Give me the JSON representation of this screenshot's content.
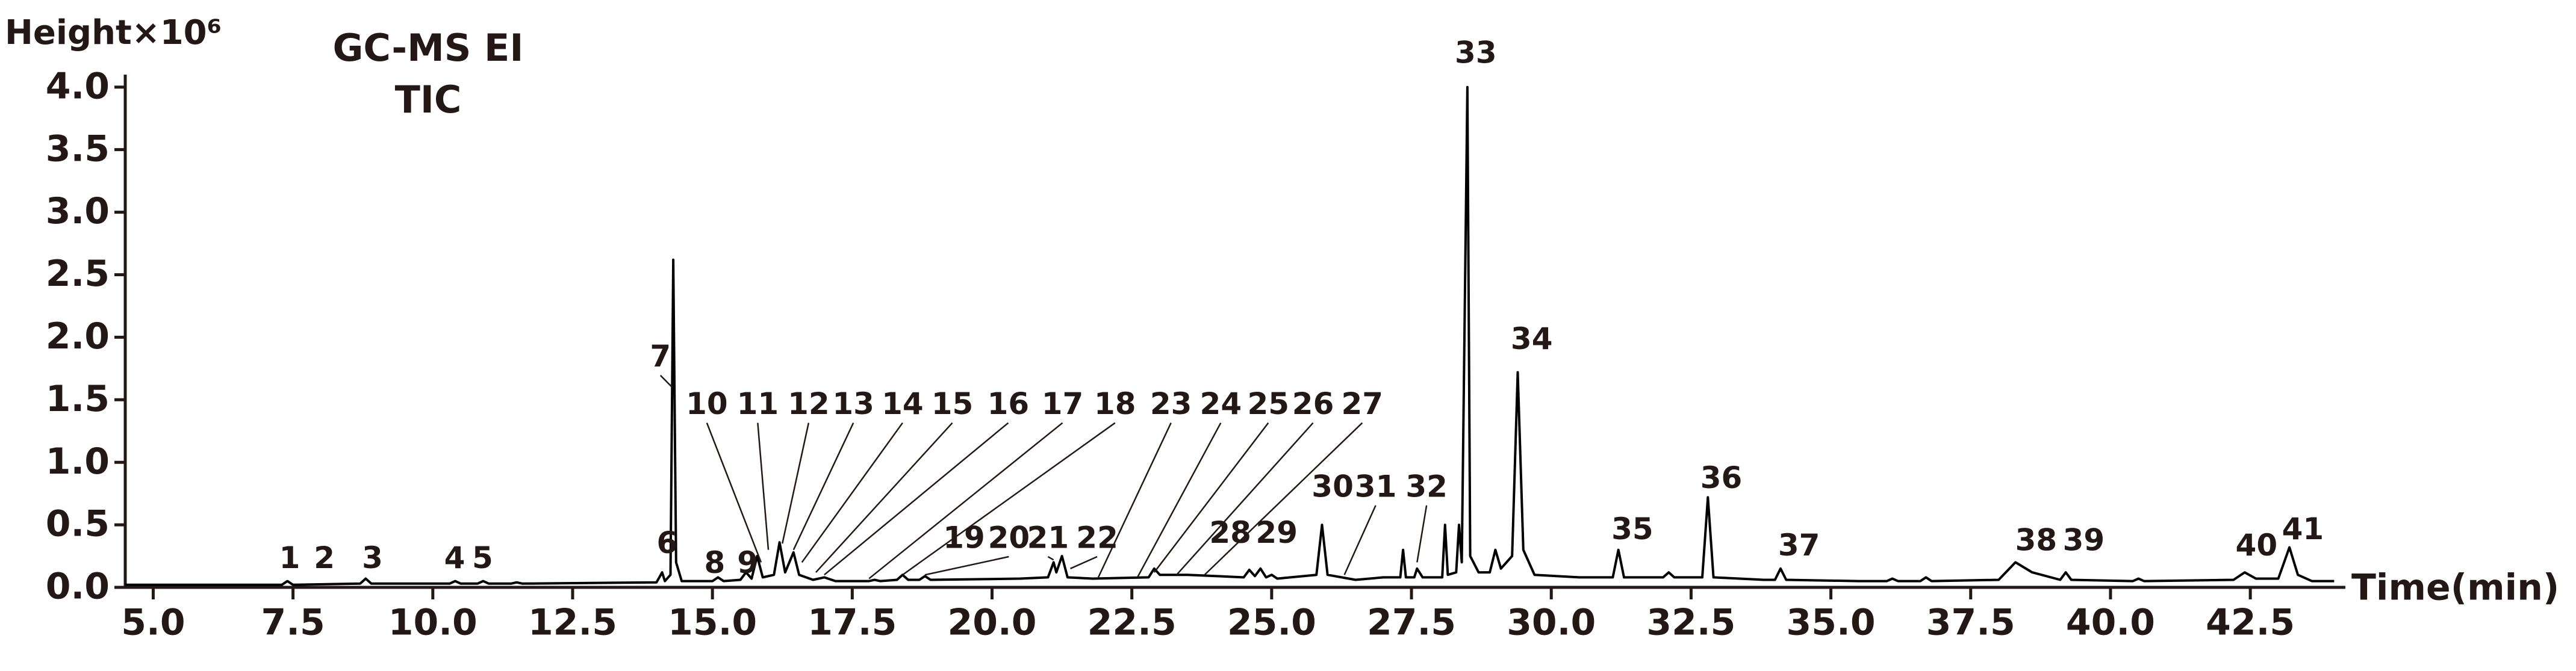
{
  "chart_data": {
    "type": "line",
    "title": "GC-MS EI",
    "subtitle": "TIC",
    "y_label": "Height×10⁶",
    "x_label": "Time(min)",
    "color": "#000000",
    "xlim": [
      4.5,
      44.2
    ],
    "ylim": [
      0,
      4.1
    ],
    "xticks": [
      {
        "value": 5,
        "label": "5.0"
      },
      7.5,
      {
        "value": 10,
        "label": "10.0"
      },
      12.5,
      {
        "value": 15,
        "label": "15.0"
      },
      17.5,
      {
        "value": 20,
        "label": "20.0"
      },
      22.5,
      {
        "value": 25,
        "label": "25.0"
      },
      27.5,
      {
        "value": 30,
        "label": "30.0"
      },
      32.5,
      {
        "value": 35,
        "label": "35.0"
      },
      37.5,
      {
        "value": 40,
        "label": "40.0"
      },
      42.5
    ],
    "yticks": [
      {
        "value": 0,
        "label": "0.0"
      },
      0.5,
      {
        "value": 1,
        "label": "1.0"
      },
      1.5,
      {
        "value": 2,
        "label": "2.0"
      },
      2.5,
      {
        "value": 3,
        "label": "3.0"
      },
      3.5,
      {
        "value": 4,
        "label": "4.0"
      }
    ],
    "x": [
      4.5,
      7.3,
      7.4,
      7.5,
      8.7,
      8.8,
      8.9,
      10.3,
      10.4,
      10.5,
      10.8,
      10.9,
      11.0,
      11.4,
      11.5,
      11.6,
      14.0,
      14.1,
      14.15,
      14.25,
      14.3,
      14.35,
      14.45,
      15.0,
      15.1,
      15.2,
      15.5,
      15.6,
      15.7,
      15.8,
      15.9,
      16.1,
      16.2,
      16.3,
      16.45,
      16.55,
      16.8,
      17.0,
      17.2,
      17.8,
      17.9,
      18.0,
      18.3,
      18.4,
      18.5,
      18.7,
      18.8,
      18.9,
      20.5,
      21.0,
      21.1,
      21.15,
      21.25,
      21.35,
      21.8,
      22.8,
      22.9,
      23.0,
      23.5,
      24.0,
      24.5,
      24.6,
      24.7,
      24.8,
      24.9,
      25.0,
      25.1,
      25.8,
      25.9,
      26.0,
      26.5,
      27.0,
      27.3,
      27.35,
      27.4,
      27.55,
      27.6,
      27.7,
      28.05,
      28.1,
      28.15,
      28.3,
      28.35,
      28.4,
      28.5,
      28.55,
      28.7,
      28.9,
      29.0,
      29.1,
      29.3,
      29.4,
      29.5,
      29.7,
      30.5,
      31.1,
      31.2,
      31.3,
      32.0,
      32.1,
      32.2,
      32.7,
      32.8,
      32.9,
      33.8,
      34.0,
      34.1,
      34.2,
      35.5,
      36.0,
      36.1,
      36.2,
      36.6,
      36.7,
      36.8,
      38.0,
      38.3,
      38.6,
      39.1,
      39.2,
      39.3,
      40.4,
      40.5,
      40.6,
      42.2,
      42.4,
      42.6,
      43.0,
      43.2,
      43.35,
      43.6,
      44.0
    ],
    "values": [
      0.02,
      0.02,
      0.05,
      0.02,
      0.03,
      0.07,
      0.03,
      0.03,
      0.05,
      0.03,
      0.03,
      0.05,
      0.03,
      0.03,
      0.04,
      0.03,
      0.04,
      0.12,
      0.05,
      0.1,
      2.62,
      0.2,
      0.05,
      0.05,
      0.08,
      0.05,
      0.06,
      0.12,
      0.07,
      0.25,
      0.08,
      0.1,
      0.36,
      0.12,
      0.28,
      0.1,
      0.06,
      0.08,
      0.05,
      0.05,
      0.06,
      0.05,
      0.06,
      0.1,
      0.06,
      0.06,
      0.09,
      0.06,
      0.07,
      0.08,
      0.2,
      0.12,
      0.25,
      0.08,
      0.07,
      0.08,
      0.15,
      0.1,
      0.1,
      0.09,
      0.08,
      0.14,
      0.09,
      0.15,
      0.08,
      0.1,
      0.07,
      0.1,
      0.5,
      0.1,
      0.06,
      0.08,
      0.08,
      0.3,
      0.08,
      0.08,
      0.15,
      0.08,
      0.08,
      0.5,
      0.1,
      0.12,
      0.5,
      0.2,
      4.0,
      0.25,
      0.12,
      0.12,
      0.3,
      0.15,
      0.25,
      1.72,
      0.3,
      0.1,
      0.08,
      0.08,
      0.3,
      0.08,
      0.08,
      0.12,
      0.08,
      0.08,
      0.72,
      0.08,
      0.06,
      0.06,
      0.15,
      0.06,
      0.05,
      0.05,
      0.07,
      0.05,
      0.05,
      0.08,
      0.05,
      0.06,
      0.2,
      0.12,
      0.06,
      0.12,
      0.06,
      0.05,
      0.07,
      0.05,
      0.06,
      0.12,
      0.07,
      0.07,
      0.32,
      0.1,
      0.05,
      0.05
    ],
    "annotations": [
      {
        "text": "1",
        "x": 7.44,
        "y": 0.22
      },
      {
        "text": "2",
        "x": 8.06,
        "y": 0.22
      },
      {
        "text": "3",
        "x": 8.92,
        "y": 0.22
      },
      {
        "text": "4",
        "x": 10.39,
        "y": 0.22
      },
      {
        "text": "5",
        "x": 10.89,
        "y": 0.22
      },
      {
        "text": "6",
        "x": 14.19,
        "y": 0.34
      },
      {
        "text": "7",
        "x": 14.07,
        "y": 1.83,
        "target": [
          14.28,
          1.6
        ]
      },
      {
        "text": "8",
        "x": 15.04,
        "y": 0.18
      },
      {
        "text": "9",
        "x": 15.63,
        "y": 0.18
      },
      {
        "text": "10",
        "x": 14.9,
        "y": 1.45,
        "target": [
          15.87,
          0.2
        ]
      },
      {
        "text": "11",
        "x": 15.81,
        "y": 1.45,
        "target": [
          16.0,
          0.3
        ]
      },
      {
        "text": "12",
        "x": 16.72,
        "y": 1.45,
        "target": [
          16.25,
          0.35
        ]
      },
      {
        "text": "13",
        "x": 17.52,
        "y": 1.45,
        "target": [
          16.45,
          0.3
        ]
      },
      {
        "text": "14",
        "x": 18.4,
        "y": 1.45,
        "target": [
          16.6,
          0.2
        ]
      },
      {
        "text": "15",
        "x": 19.29,
        "y": 1.45,
        "target": [
          16.85,
          0.12
        ]
      },
      {
        "text": "16",
        "x": 20.29,
        "y": 1.45,
        "target": [
          17.0,
          0.1
        ]
      },
      {
        "text": "17",
        "x": 21.26,
        "y": 1.45,
        "target": [
          17.8,
          0.07
        ]
      },
      {
        "text": "18",
        "x": 22.2,
        "y": 1.45,
        "target": [
          18.4,
          0.1
        ]
      },
      {
        "text": "19",
        "x": 19.5,
        "y": 0.38
      },
      {
        "text": "20",
        "x": 20.3,
        "y": 0.38,
        "target": [
          18.8,
          0.1
        ]
      },
      {
        "text": "21",
        "x": 21.0,
        "y": 0.38,
        "target": [
          21.1,
          0.22
        ]
      },
      {
        "text": "22",
        "x": 21.88,
        "y": 0.38,
        "target": [
          21.4,
          0.15
        ]
      },
      {
        "text": "23",
        "x": 23.2,
        "y": 1.45,
        "target": [
          21.9,
          0.08
        ]
      },
      {
        "text": "24",
        "x": 24.09,
        "y": 1.45,
        "target": [
          22.6,
          0.08
        ]
      },
      {
        "text": "25",
        "x": 24.94,
        "y": 1.45,
        "target": [
          22.9,
          0.12
        ]
      },
      {
        "text": "26",
        "x": 25.74,
        "y": 1.45,
        "target": [
          23.3,
          0.1
        ]
      },
      {
        "text": "27",
        "x": 26.62,
        "y": 1.45,
        "target": [
          23.8,
          0.1
        ]
      },
      {
        "text": "28",
        "x": 24.26,
        "y": 0.42
      },
      {
        "text": "29",
        "x": 25.09,
        "y": 0.42
      },
      {
        "text": "30",
        "x": 26.09,
        "y": 0.79
      },
      {
        "text": "31",
        "x": 26.86,
        "y": 0.79,
        "target": [
          26.3,
          0.1
        ]
      },
      {
        "text": "32",
        "x": 27.77,
        "y": 0.79,
        "target": [
          27.6,
          0.2
        ]
      },
      {
        "text": "33",
        "x": 28.65,
        "y": 4.26
      },
      {
        "text": "34",
        "x": 29.65,
        "y": 1.97
      },
      {
        "text": "35",
        "x": 31.45,
        "y": 0.45
      },
      {
        "text": "36",
        "x": 33.04,
        "y": 0.86
      },
      {
        "text": "37",
        "x": 34.43,
        "y": 0.32
      },
      {
        "text": "38",
        "x": 38.67,
        "y": 0.36
      },
      {
        "text": "39",
        "x": 39.52,
        "y": 0.36
      },
      {
        "text": "40",
        "x": 42.61,
        "y": 0.32
      },
      {
        "text": "41",
        "x": 43.44,
        "y": 0.45
      }
    ]
  }
}
